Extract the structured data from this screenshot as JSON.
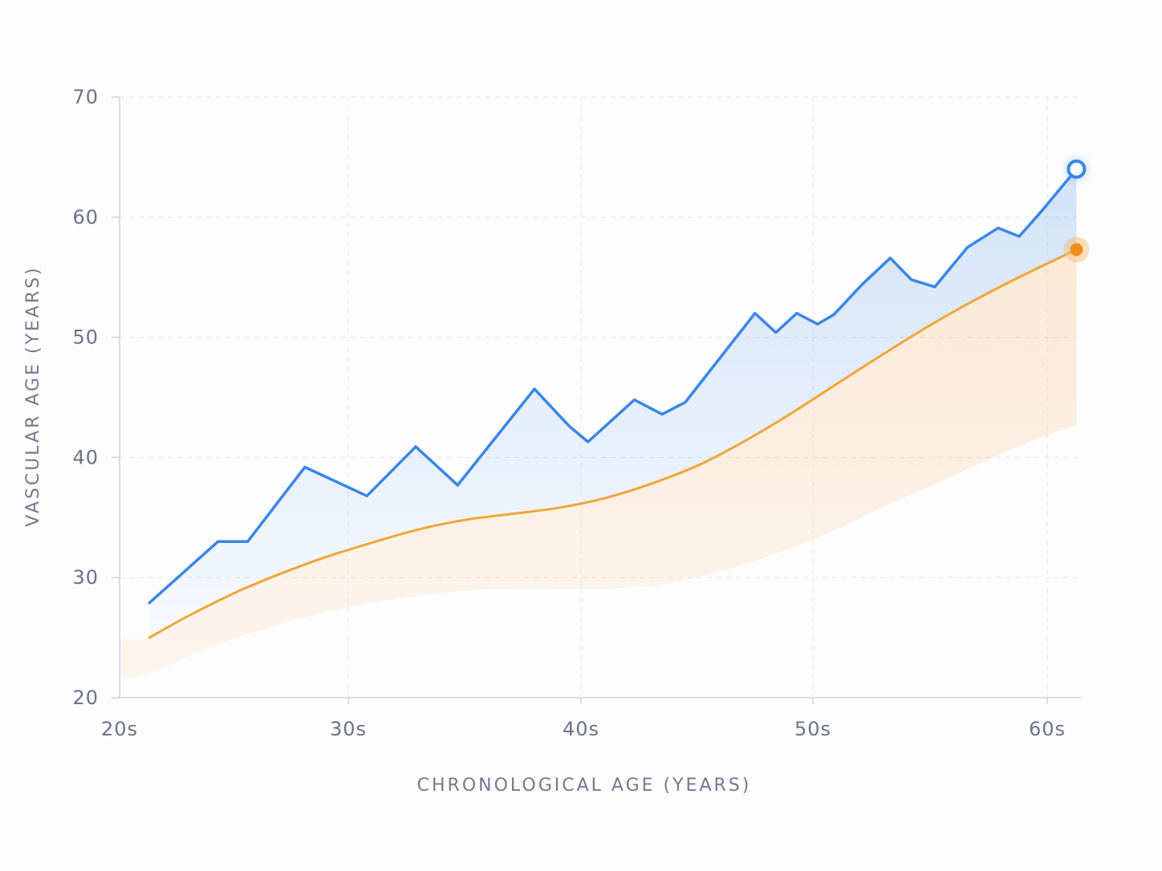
{
  "chart_data": {
    "type": "line",
    "title": "",
    "xlabel": "CHRONOLOGICAL AGE (YEARS)",
    "ylabel": "VASCULAR AGE (YEARS)",
    "x_tick_labels": [
      {
        "label": "20s",
        "value": 20
      },
      {
        "label": "30s",
        "value": 30
      },
      {
        "label": "40s",
        "value": 40
      },
      {
        "label": "50s",
        "value": 50
      },
      {
        "label": "60s",
        "value": 60
      }
    ],
    "y_ticks": [
      20,
      30,
      40,
      50,
      60,
      70
    ],
    "xlim": [
      20,
      61.5
    ],
    "ylim": [
      20,
      70
    ],
    "grid": true,
    "series": [
      {
        "key": "measured",
        "color": "#3a86e6",
        "style": "line-with-area",
        "end_marker": "hollow-circle",
        "x": [
          21.3,
          24.3,
          25.6,
          28.1,
          30.8,
          32.9,
          34.7,
          38.0,
          39.5,
          40.3,
          42.3,
          43.5,
          44.5,
          47.5,
          48.4,
          49.3,
          50.2,
          50.9,
          52.1,
          53.3,
          54.2,
          55.2,
          56.6,
          57.9,
          58.8,
          59.8,
          61.3
        ],
        "y": [
          27.9,
          33.0,
          33.0,
          39.2,
          36.8,
          40.9,
          37.7,
          45.7,
          42.6,
          41.3,
          44.8,
          43.6,
          44.6,
          52.0,
          50.4,
          52.0,
          51.1,
          51.9,
          54.4,
          56.6,
          54.8,
          54.2,
          57.5,
          59.1,
          58.4,
          60.6,
          64.0
        ]
      },
      {
        "key": "expected",
        "color": "#f0a53a",
        "style": "smooth-line",
        "end_marker": "filled-circle",
        "x": [
          21.3,
          23.0,
          25.0,
          27.0,
          29.0,
          31.0,
          33.0,
          35.0,
          37.0,
          39.0,
          41.0,
          43.0,
          45.0,
          47.0,
          49.0,
          51.0,
          53.0,
          55.0,
          57.0,
          59.0,
          61.3
        ],
        "y": [
          25.0,
          26.8,
          28.7,
          30.3,
          31.7,
          32.9,
          34.0,
          34.8,
          35.3,
          35.8,
          36.6,
          37.8,
          39.3,
          41.3,
          43.6,
          46.1,
          48.6,
          51.0,
          53.2,
          55.2,
          57.3
        ]
      }
    ],
    "band": {
      "key": "range",
      "color": "#fbe1c2",
      "x": [
        20.0,
        21.3,
        23.0,
        25.0,
        27.0,
        29.0,
        31.0,
        33.0,
        35.0,
        37.0,
        39.0,
        41.0,
        43.0,
        45.0,
        47.0,
        49.0,
        51.0,
        53.0,
        55.0,
        57.0,
        59.0,
        61.3
      ],
      "lower": [
        21.5,
        22.0,
        23.4,
        24.9,
        26.1,
        27.1,
        27.9,
        28.5,
        28.9,
        29.1,
        29.1,
        29.1,
        29.3,
        30.0,
        31.1,
        32.4,
        34.0,
        35.9,
        37.6,
        39.4,
        41.1,
        42.7
      ],
      "upper": [
        24.9,
        25.0,
        26.8,
        28.7,
        30.3,
        31.7,
        32.9,
        34.0,
        34.8,
        35.3,
        35.8,
        36.6,
        37.8,
        39.3,
        41.3,
        43.6,
        46.1,
        48.6,
        51.0,
        53.2,
        55.2,
        57.3
      ]
    }
  }
}
